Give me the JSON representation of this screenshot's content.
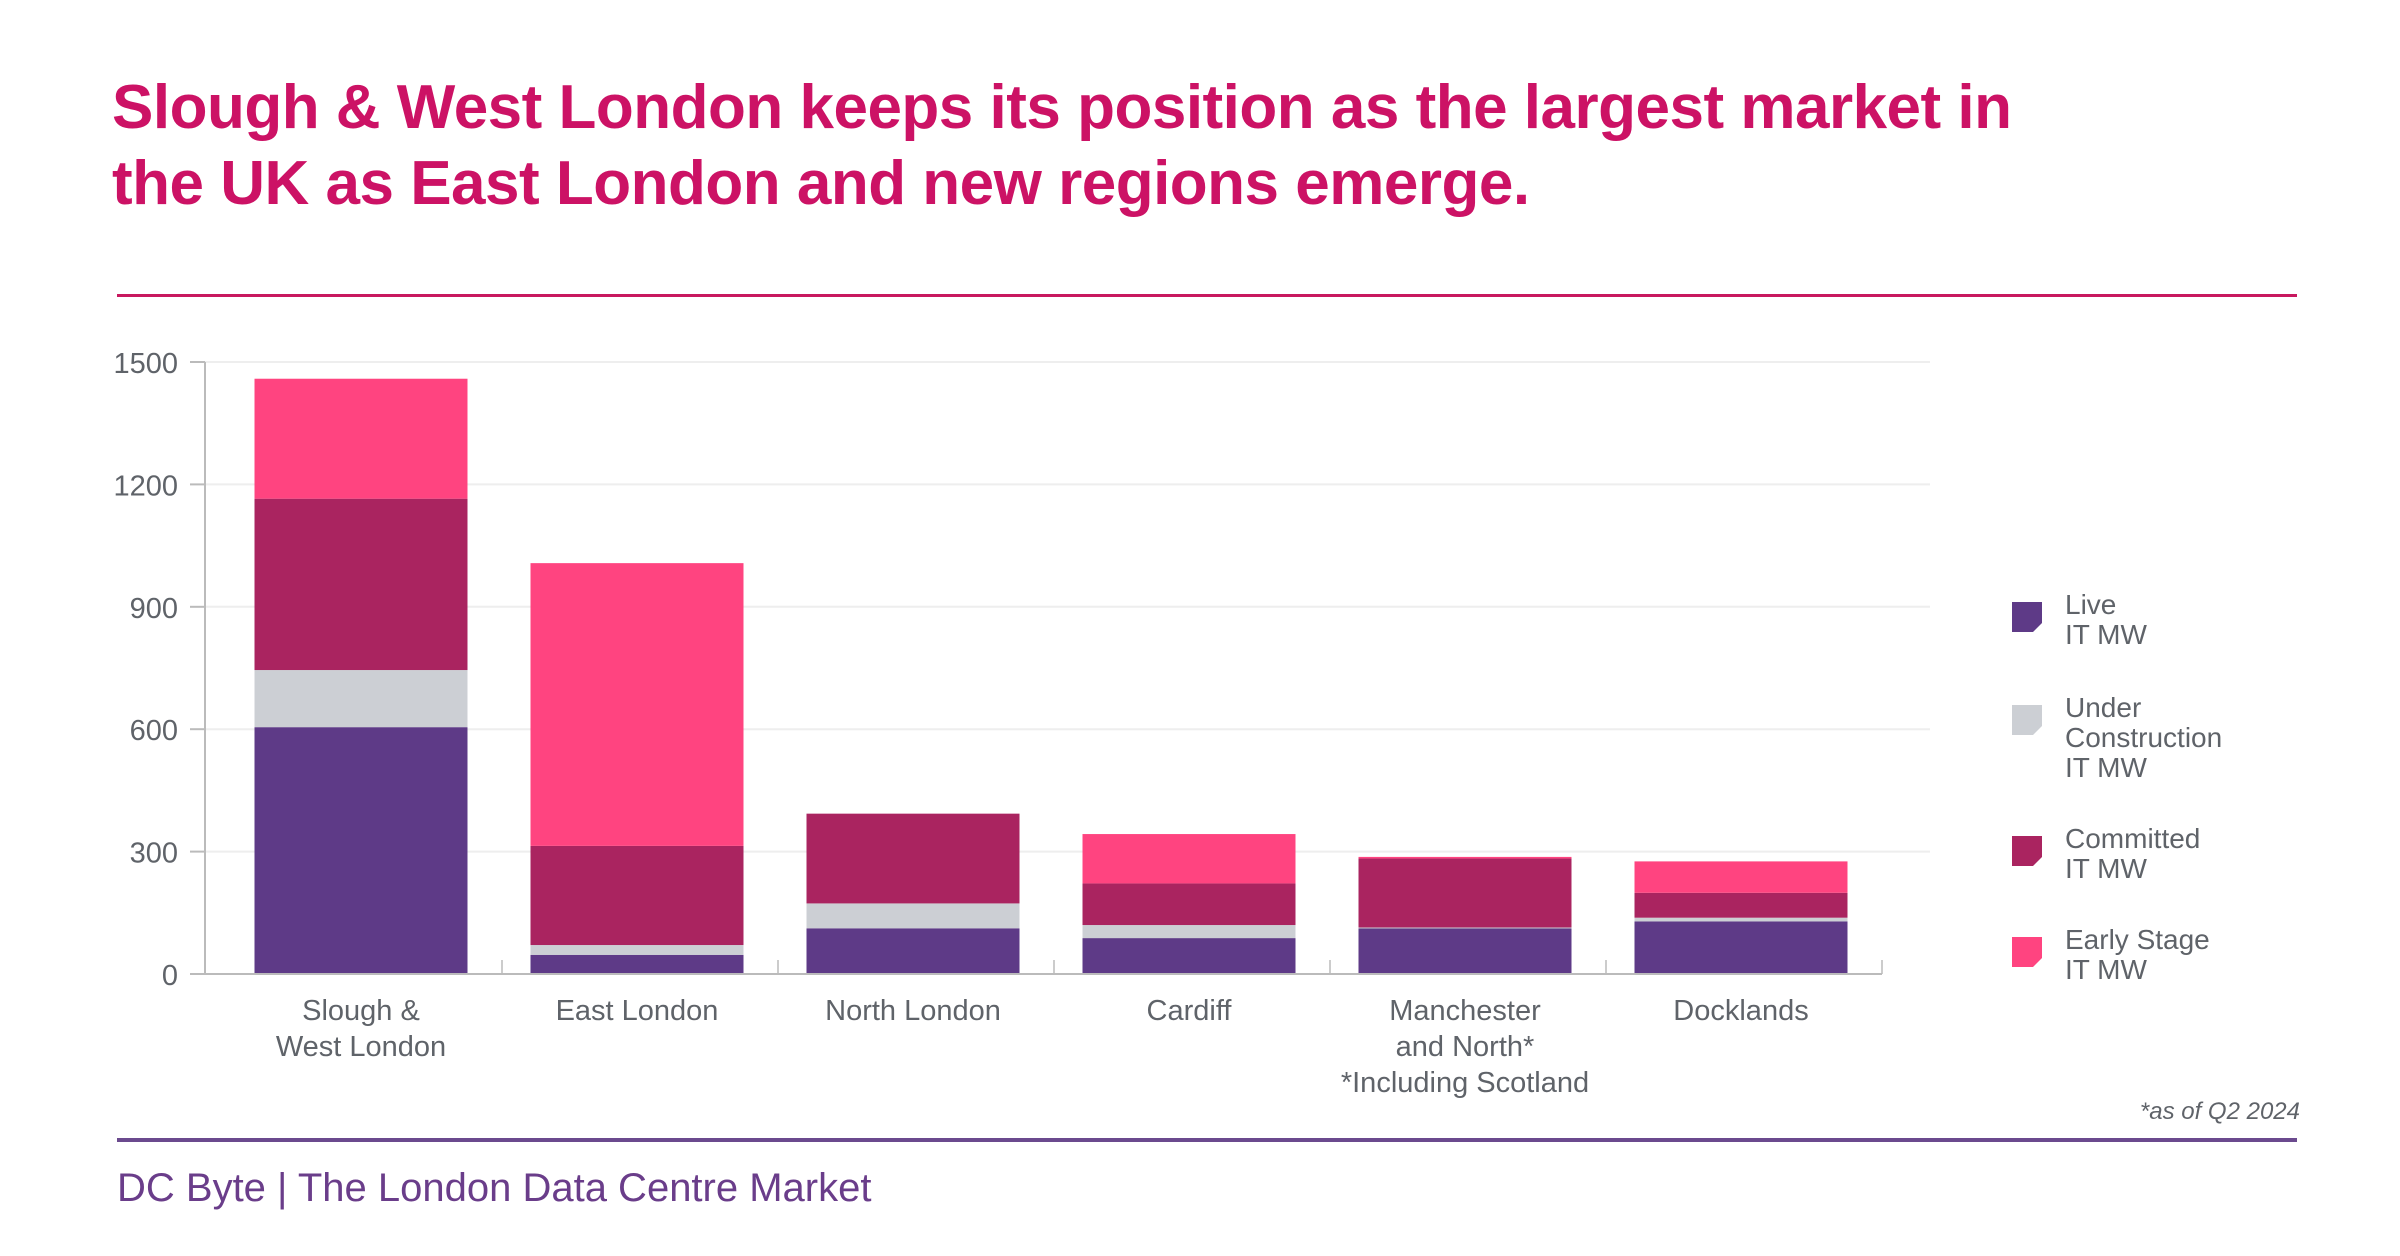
{
  "title": "Slough & West London keeps its position as the largest market in the UK as East London and new regions emerge.",
  "footer": "DC Byte | The London Data Centre Market",
  "footnote": "*as of Q2 2024",
  "chart_data": {
    "type": "bar",
    "stacked": true,
    "title": "Slough & West London keeps its position as the largest market in the UK as East London and new regions emerge.",
    "xlabel": "",
    "ylabel": "",
    "ylim": [
      0,
      1500
    ],
    "yticks": [
      "0",
      "300",
      "600",
      "900",
      "1200",
      "1500"
    ],
    "grid": true,
    "legend_position": "right",
    "categories": [
      "Slough &\nWest London",
      "East London",
      "North London",
      "Cardiff",
      "Manchester\nand North*\n*Including Scotland",
      "Docklands"
    ],
    "series": [
      {
        "name": "Live\nIT MW",
        "color": "#5E3A87",
        "values": [
          605,
          47,
          112,
          88,
          113,
          129
        ]
      },
      {
        "name": "Under\nConstruction\nIT MW",
        "color": "#CCCFD4",
        "values": [
          140,
          24,
          61,
          32,
          1,
          9
        ]
      },
      {
        "name": "Committed\nIT MW",
        "color": "#AA2460",
        "values": [
          420,
          243,
          220,
          102,
          169,
          61
        ]
      },
      {
        "name": "Early Stage\nIT MW",
        "color": "#FF4480",
        "values": [
          294,
          693,
          0,
          121,
          4,
          77
        ]
      }
    ]
  }
}
